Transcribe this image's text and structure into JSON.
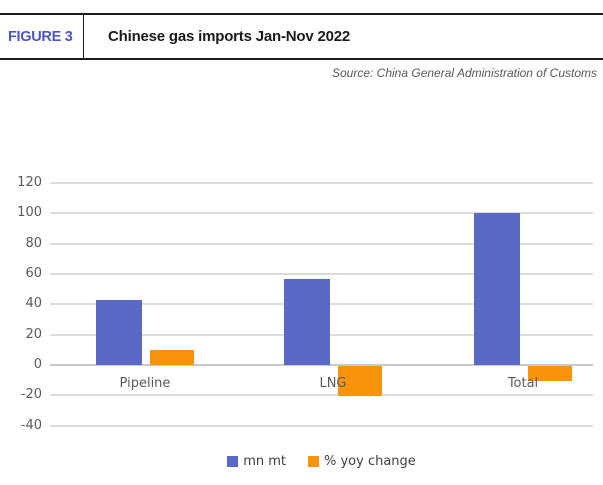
{
  "header": {
    "figure_label": "FIGURE 3",
    "title": "Chinese gas imports Jan-Nov 2022"
  },
  "source": "Source: China General Administration of Customs",
  "colors": {
    "bar_blue": "#5a69c4",
    "bar_orange": "#f7940b",
    "figure_label_blue": "#4a55c6",
    "gridline": "#dcdcdc",
    "axis_text": "#595959"
  },
  "chart_data": {
    "type": "bar",
    "title": "Chinese gas imports Jan-Nov 2022",
    "source": "Source: China General Administration of Customs",
    "categories": [
      "Pipeline",
      "LNG",
      "Total"
    ],
    "series": [
      {
        "name": "mn mt",
        "color_key": "bar_blue",
        "values": [
          43,
          57,
          100
        ]
      },
      {
        "name": "% yoy change",
        "color_key": "bar_orange",
        "values": [
          10,
          -20,
          -10
        ]
      }
    ],
    "xlabel": "",
    "ylabel": "",
    "ylim": [
      -40,
      120
    ],
    "ytick_step": 20,
    "yticks": [
      120,
      100,
      80,
      60,
      40,
      20,
      0,
      -20,
      -40
    ],
    "grid": true,
    "legend_position": "bottom"
  }
}
